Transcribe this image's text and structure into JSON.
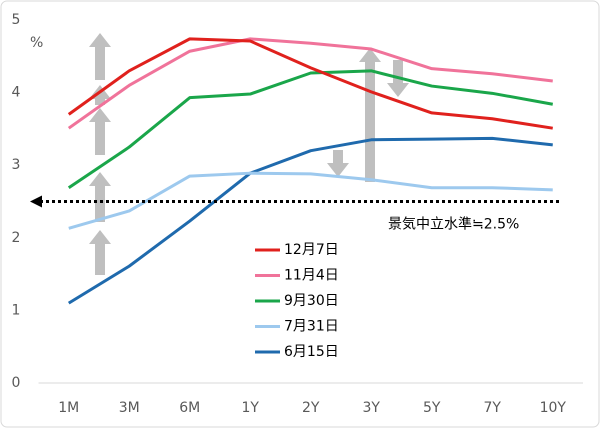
{
  "chart_data": {
    "type": "line",
    "y_unit": "%",
    "categories": [
      "1M",
      "3M",
      "6M",
      "1Y",
      "2Y",
      "3Y",
      "5Y",
      "7Y",
      "10Y"
    ],
    "series": [
      {
        "name": "12月7日",
        "color": "#e0211d",
        "values": [
          3.7,
          4.3,
          4.74,
          4.71,
          4.34,
          4.01,
          3.72,
          3.64,
          3.51
        ]
      },
      {
        "name": "11月4日",
        "color": "#f0739a",
        "values": [
          3.51,
          4.1,
          4.57,
          4.74,
          4.68,
          4.6,
          4.33,
          4.26,
          4.16
        ]
      },
      {
        "name": "9月30日",
        "color": "#1aa64a",
        "values": [
          2.69,
          3.25,
          3.93,
          3.98,
          4.27,
          4.3,
          4.09,
          3.99,
          3.84
        ]
      },
      {
        "name": "7月31日",
        "color": "#9dc9ee",
        "values": [
          2.13,
          2.37,
          2.85,
          2.89,
          2.88,
          2.8,
          2.69,
          2.69,
          2.66
        ]
      },
      {
        "name": "6月15日",
        "color": "#1f6aad",
        "values": [
          1.1,
          1.61,
          2.23,
          2.89,
          3.2,
          3.35,
          3.36,
          3.37,
          3.28
        ]
      }
    ],
    "ylim": [
      0,
      5
    ],
    "yticks": [
      0,
      1,
      2,
      3,
      4,
      5
    ],
    "neutral": {
      "value": 2.5,
      "label": "景気中立水準≒2.5%"
    }
  }
}
